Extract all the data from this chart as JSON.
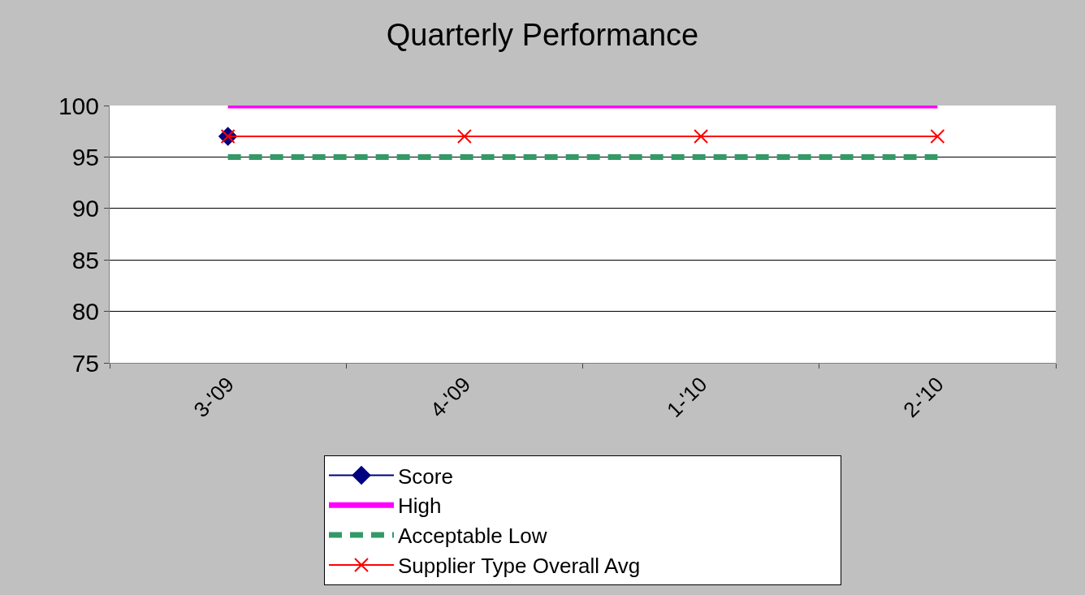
{
  "chart_data": {
    "type": "line",
    "title": "Quarterly Performance",
    "categories": [
      "3-'09",
      "4-'09",
      "1-'10",
      "2-'10"
    ],
    "series": [
      {
        "name": "Score",
        "color": "#000080",
        "values": [
          97,
          null,
          null,
          null
        ],
        "marker": "diamond",
        "line_style": "solid"
      },
      {
        "name": "High",
        "color": "#ff00ff",
        "values": [
          100,
          100,
          100,
          100
        ],
        "marker": "none",
        "line_style": "solid"
      },
      {
        "name": "Acceptable Low",
        "color": "#339966",
        "values": [
          95,
          95,
          95,
          95
        ],
        "marker": "none",
        "line_style": "dashed"
      },
      {
        "name": "Supplier Type Overall Avg",
        "color": "#ff0000",
        "values": [
          97,
          97,
          97,
          97
        ],
        "marker": "cross",
        "line_style": "solid"
      }
    ],
    "ylim": [
      75,
      100
    ],
    "yticks": [
      75,
      80,
      85,
      90,
      95,
      100
    ],
    "grid": "y",
    "legend": "bottom"
  }
}
